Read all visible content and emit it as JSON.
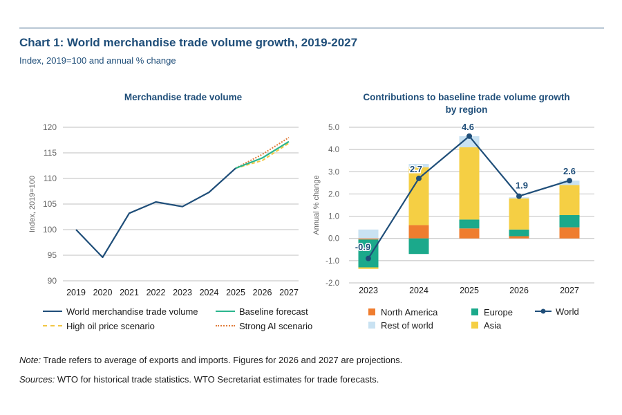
{
  "header": {
    "title": "Chart 1: World merchandise trade volume growth, 2019-2027",
    "subtitle": "Index, 2019=100 and annual % change"
  },
  "colors": {
    "navy": "#1f4e79",
    "baseline": "#2bb58e",
    "high_oil": "#f2c744",
    "strong_ai": "#e07b39",
    "north_america": "#ef7d2f",
    "europe": "#1ba98b",
    "rest_of_world": "#c9e2f2",
    "asia": "#f5cf44",
    "grid": "#bfbfbf",
    "axis_text": "#666666"
  },
  "chart_data": [
    {
      "type": "line",
      "title": "Merchandise trade volume",
      "xlabel": "",
      "ylabel": "Index, 2019=100",
      "x": [
        "2019",
        "2020",
        "2021",
        "2022",
        "2023",
        "2024",
        "2025",
        "2026",
        "2027"
      ],
      "ylim": [
        90,
        120
      ],
      "yticks": [
        90,
        95,
        100,
        105,
        110,
        115,
        120
      ],
      "grid": true,
      "legend_position": "bottom",
      "series": [
        {
          "name": "World merchandise trade volume",
          "style": "solid",
          "x": [
            "2019",
            "2020",
            "2021",
            "2022",
            "2023",
            "2024",
            "2025"
          ],
          "values": [
            100,
            94.6,
            103.2,
            105.4,
            104.5,
            107.3,
            112.0
          ]
        },
        {
          "name": "Baseline forecast",
          "style": "solid",
          "x": [
            "2025",
            "2026",
            "2027"
          ],
          "values": [
            112.0,
            114.0,
            117.2
          ]
        },
        {
          "name": "High oil price scenario",
          "style": "dashed",
          "x": [
            "2025",
            "2026",
            "2027"
          ],
          "values": [
            112.0,
            113.5,
            116.9
          ]
        },
        {
          "name": "Strong AI scenario",
          "style": "dotted",
          "x": [
            "2025",
            "2026",
            "2027"
          ],
          "values": [
            112.0,
            114.7,
            118.0
          ]
        }
      ]
    },
    {
      "type": "bar",
      "stacked": true,
      "title": "Contributions to baseline trade volume growth by region",
      "xlabel": "",
      "ylabel": "Annual % change",
      "categories": [
        "2023",
        "2024",
        "2025",
        "2026",
        "2027"
      ],
      "ylim": [
        -2.0,
        5.0
      ],
      "yticks": [
        "-2.0",
        "-1.0",
        "0.0",
        "1.0",
        "2.0",
        "3.0",
        "4.0",
        "5.0"
      ],
      "grid": true,
      "legend_position": "bottom",
      "series": [
        {
          "name": "North America",
          "values": [
            -0.05,
            0.6,
            0.45,
            0.1,
            0.5
          ]
        },
        {
          "name": "Europe",
          "values": [
            -1.25,
            -0.7,
            0.4,
            0.3,
            0.55
          ]
        },
        {
          "name": "Rest of world",
          "values": [
            0.4,
            0.15,
            0.5,
            0.05,
            0.2
          ]
        },
        {
          "name": "Asia",
          "values": [
            -0.07,
            2.6,
            3.25,
            1.4,
            1.35
          ]
        }
      ],
      "line_series": {
        "name": "World",
        "values": [
          -0.9,
          2.7,
          4.6,
          1.9,
          2.6
        ],
        "labels": [
          "-0.9",
          "2.7",
          "4.6",
          "1.9",
          "2.6"
        ]
      }
    }
  ],
  "legend_left": {
    "world": "World merchandise trade volume",
    "baseline": "Baseline forecast",
    "high_oil": "High oil price scenario",
    "strong_ai": "Strong AI scenario"
  },
  "legend_right": {
    "north_america": "North America",
    "europe": "Europe",
    "world": "World",
    "rest_of_world": "Rest of world",
    "asia": "Asia"
  },
  "footer": {
    "note_label": "Note:",
    "note_text": " Trade refers to average of exports and imports. Figures for 2026 and 2027 are projections.",
    "sources_label": "Sources:",
    "sources_text": " WTO for historical trade statistics. WTO Secretariat estimates for trade forecasts."
  }
}
